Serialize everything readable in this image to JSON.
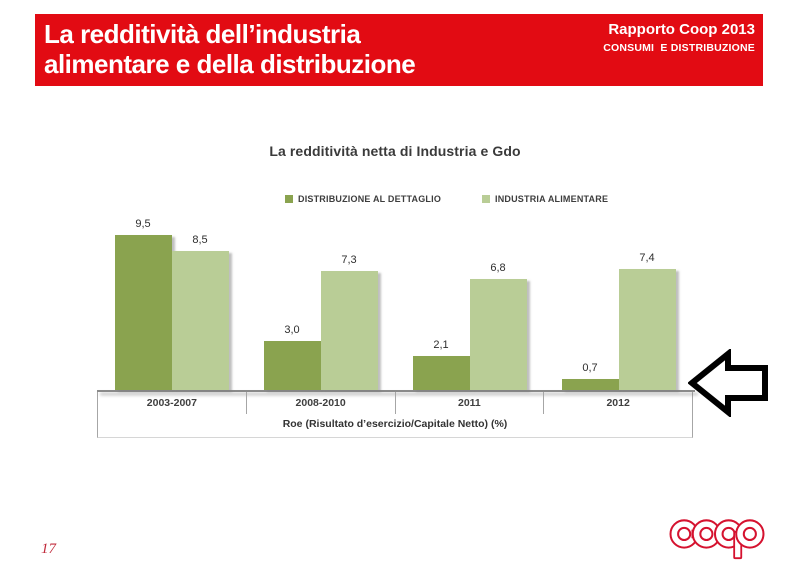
{
  "header": {
    "title_lines": [
      "La redditività dell’industria",
      "alimentare e della distribuzione"
    ],
    "report_name": "Rapporto Coop 2013",
    "report_subtitle": "CONSUMI  E DISTRIBUZIONE",
    "background_color": "#e20b13"
  },
  "chart_data": {
    "type": "bar",
    "title": "La redditività netta di Industria e Gdo",
    "categories": [
      "2003-2007",
      "2008-2010",
      "2011",
      "2012"
    ],
    "series": [
      {
        "name": "DISTRIBUZIONE AL DETTAGLIO",
        "color": "#8aa34f",
        "values": [
          9.5,
          3.0,
          2.1,
          0.7
        ],
        "value_labels": [
          "9,5",
          "3,0",
          "2,1",
          "0,7"
        ]
      },
      {
        "name": "INDUSTRIA ALIMENTARE",
        "color": "#b9cd96",
        "values": [
          8.5,
          7.3,
          6.8,
          7.4
        ],
        "value_labels": [
          "8,5",
          "7,3",
          "6,8",
          "7,4"
        ]
      }
    ],
    "xlabel": "Roe (Risultato d’esercizio/Capitale Netto) (%)",
    "ylabel": "",
    "ylim": [
      0,
      11
    ],
    "grid": false,
    "legend_position": "top",
    "value_labels_shown": true
  },
  "annotation_arrow": {
    "direction": "left",
    "outline_color": "#000000",
    "fill_color": "#ffffff"
  },
  "page_number": "17",
  "logo": {
    "name": "coop",
    "color": "#d5122f"
  }
}
